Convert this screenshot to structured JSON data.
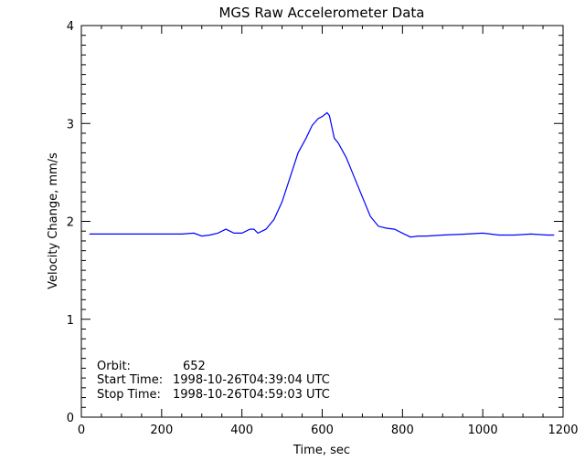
{
  "chart_data": {
    "type": "line",
    "title": "MGS Raw Accelerometer Data",
    "xlabel": "Time, sec",
    "ylabel": "Velocity Change, mm/s",
    "xlim": [
      0,
      1200
    ],
    "ylim": [
      0,
      4
    ],
    "x_ticks": [
      0,
      200,
      400,
      600,
      800,
      1000,
      1200
    ],
    "y_ticks": [
      0,
      1,
      2,
      3,
      4
    ],
    "x_minor_step": 50,
    "y_minor_step": 0.1,
    "grid": false,
    "series": [
      {
        "name": "Velocity Change",
        "color": "#0000ff",
        "x": [
          20,
          60,
          100,
          150,
          200,
          250,
          280,
          300,
          320,
          340,
          360,
          370,
          380,
          400,
          420,
          430,
          440,
          460,
          480,
          500,
          520,
          540,
          560,
          575,
          590,
          600,
          612,
          618,
          630,
          640,
          660,
          680,
          700,
          720,
          740,
          760,
          780,
          800,
          820,
          840,
          860,
          900,
          960,
          1000,
          1040,
          1080,
          1120,
          1160,
          1178
        ],
        "y": [
          1.87,
          1.87,
          1.87,
          1.87,
          1.87,
          1.87,
          1.88,
          1.85,
          1.86,
          1.88,
          1.92,
          1.9,
          1.88,
          1.88,
          1.92,
          1.92,
          1.88,
          1.92,
          2.02,
          2.2,
          2.45,
          2.7,
          2.85,
          2.98,
          3.05,
          3.07,
          3.11,
          3.08,
          2.85,
          2.8,
          2.65,
          2.45,
          2.25,
          2.05,
          1.95,
          1.93,
          1.92,
          1.88,
          1.84,
          1.85,
          1.85,
          1.86,
          1.87,
          1.88,
          1.86,
          1.86,
          1.87,
          1.86,
          1.86
        ]
      }
    ],
    "annotations": [
      {
        "label": "Orbit:",
        "value": "652"
      },
      {
        "label": "Start Time:",
        "value": "1998-10-26T04:39:04 UTC"
      },
      {
        "label": "Stop Time:",
        "value": "1998-10-26T04:59:03 UTC"
      }
    ]
  }
}
